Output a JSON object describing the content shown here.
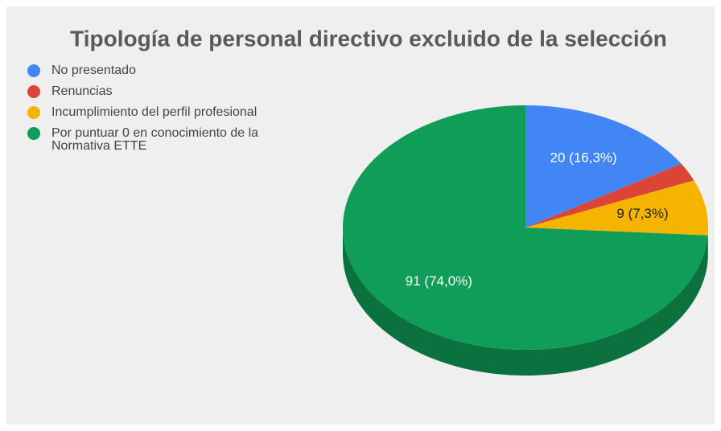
{
  "chart_data": {
    "type": "pie",
    "title": "Tipología de personal directivo excluido de la selección",
    "categories": [
      "No presentado",
      "Renuncias",
      "Incumplimiento del perfil profesional",
      "Por puntuar 0 en conocimiento de la Normativa ETTE"
    ],
    "values": [
      20,
      3,
      9,
      91
    ],
    "value_labels": [
      "20 (16,3%)",
      null,
      "9 (7,3%)",
      "91 (74,0%)"
    ],
    "colors": [
      "#4285f4",
      "#db4437",
      "#f4b400",
      "#0f9d58"
    ],
    "legend": "top-left"
  }
}
